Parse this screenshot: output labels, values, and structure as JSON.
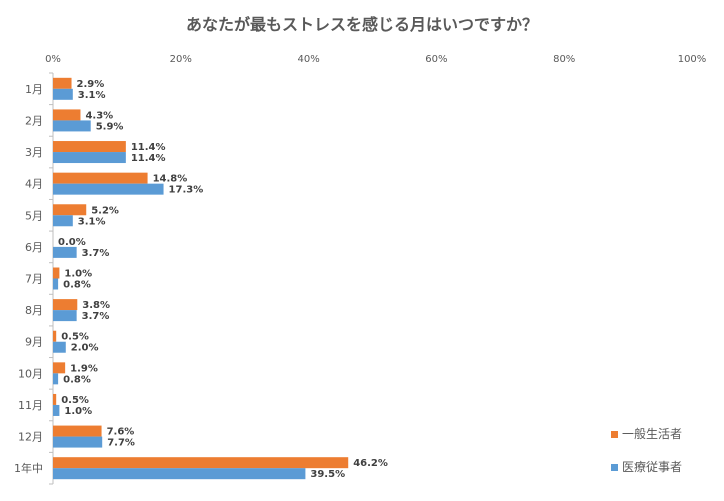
{
  "chart_data": {
    "type": "bar",
    "orientation": "horizontal",
    "title": "あなたが最もストレスを感じる月はいつですか？",
    "categories": [
      "1月",
      "2月",
      "3月",
      "4月",
      "5月",
      "6月",
      "7月",
      "8月",
      "9月",
      "10月",
      "11月",
      "12月",
      "1年中"
    ],
    "series": [
      {
        "name": "一般生活者",
        "color": "#ED7D31",
        "values": [
          2.9,
          4.3,
          11.4,
          14.8,
          5.2,
          0.0,
          1.0,
          3.8,
          0.5,
          1.9,
          0.5,
          7.6,
          46.2
        ],
        "labels": [
          "2.9%",
          "4.3%",
          "11.4%",
          "14.8%",
          "5.2%",
          "0.0%",
          "1.0%",
          "3.8%",
          "0.5%",
          "1.9%",
          "0.5%",
          "7.6%",
          "46.2%"
        ]
      },
      {
        "name": "医療従事者",
        "color": "#5B9BD5",
        "values": [
          3.1,
          5.9,
          11.4,
          17.3,
          3.1,
          3.7,
          0.8,
          3.7,
          2.0,
          0.8,
          1.0,
          7.7,
          39.5
        ],
        "labels": [
          "3.1%",
          "5.9%",
          "11.4%",
          "17.3%",
          "3.1%",
          "3.7%",
          "0.8%",
          "3.7%",
          "2.0%",
          "0.8%",
          "1.0%",
          "7.7%",
          "39.5%"
        ]
      }
    ],
    "xlim": [
      0,
      100
    ],
    "xticks": [
      0,
      20,
      40,
      60,
      80,
      100
    ],
    "xtick_labels": [
      "0%",
      "20%",
      "40%",
      "60%",
      "80%",
      "100%"
    ],
    "x_axis_position": "top",
    "grid": false,
    "legend_position": "bottom-right",
    "xlabel": "",
    "ylabel": ""
  }
}
